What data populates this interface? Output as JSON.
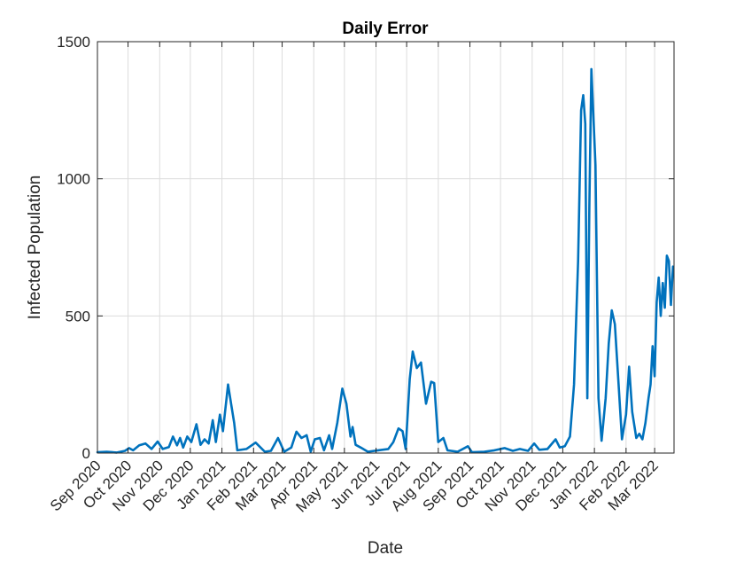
{
  "chart_data": {
    "type": "line",
    "title": "Daily Error",
    "xlabel": "Date",
    "ylabel": "Infected Population",
    "ylim": [
      0,
      1500
    ],
    "xlim": [
      "2020-09-01",
      "2022-03-20"
    ],
    "grid": true,
    "y_ticks": [
      0,
      500,
      1000,
      1500
    ],
    "x_ticks": [
      {
        "date": "2020-09-01",
        "label": "Sep 2020"
      },
      {
        "date": "2020-10-01",
        "label": "Oct 2020"
      },
      {
        "date": "2020-11-01",
        "label": "Nov 2020"
      },
      {
        "date": "2020-12-01",
        "label": "Dec 2020"
      },
      {
        "date": "2021-01-01",
        "label": "Jan 2021"
      },
      {
        "date": "2021-02-01",
        "label": "Feb 2021"
      },
      {
        "date": "2021-03-01",
        "label": "Mar 2021"
      },
      {
        "date": "2021-04-01",
        "label": "Apr 2021"
      },
      {
        "date": "2021-05-01",
        "label": "May 2021"
      },
      {
        "date": "2021-06-01",
        "label": "Jun 2021"
      },
      {
        "date": "2021-07-01",
        "label": "Jul 2021"
      },
      {
        "date": "2021-08-01",
        "label": "Aug 2021"
      },
      {
        "date": "2021-09-01",
        "label": "Sep 2021"
      },
      {
        "date": "2021-10-01",
        "label": "Oct 2021"
      },
      {
        "date": "2021-11-01",
        "label": "Nov 2021"
      },
      {
        "date": "2021-12-01",
        "label": "Dec 2021"
      },
      {
        "date": "2022-01-01",
        "label": "Jan 2022"
      },
      {
        "date": "2022-02-01",
        "label": "Feb 2022"
      },
      {
        "date": "2022-03-01",
        "label": "Mar 2022"
      }
    ],
    "series": [
      {
        "color": "#0072BD",
        "points": [
          [
            "2020-09-01",
            3
          ],
          [
            "2020-09-10",
            5
          ],
          [
            "2020-09-20",
            2
          ],
          [
            "2020-09-28",
            8
          ],
          [
            "2020-10-02",
            18
          ],
          [
            "2020-10-06",
            10
          ],
          [
            "2020-10-12",
            28
          ],
          [
            "2020-10-18",
            35
          ],
          [
            "2020-10-24",
            15
          ],
          [
            "2020-10-30",
            42
          ],
          [
            "2020-11-04",
            15
          ],
          [
            "2020-11-10",
            22
          ],
          [
            "2020-11-14",
            60
          ],
          [
            "2020-11-18",
            28
          ],
          [
            "2020-11-21",
            55
          ],
          [
            "2020-11-24",
            20
          ],
          [
            "2020-11-28",
            60
          ],
          [
            "2020-12-02",
            40
          ],
          [
            "2020-12-07",
            105
          ],
          [
            "2020-12-11",
            30
          ],
          [
            "2020-12-15",
            50
          ],
          [
            "2020-12-19",
            35
          ],
          [
            "2020-12-23",
            120
          ],
          [
            "2020-12-26",
            40
          ],
          [
            "2020-12-30",
            140
          ],
          [
            "2021-01-02",
            80
          ],
          [
            "2021-01-07",
            250
          ],
          [
            "2021-01-10",
            180
          ],
          [
            "2021-01-13",
            110
          ],
          [
            "2021-01-16",
            10
          ],
          [
            "2021-01-25",
            15
          ],
          [
            "2021-02-03",
            38
          ],
          [
            "2021-02-12",
            5
          ],
          [
            "2021-02-18",
            8
          ],
          [
            "2021-02-25",
            55
          ],
          [
            "2021-03-03",
            5
          ],
          [
            "2021-03-10",
            20
          ],
          [
            "2021-03-15",
            78
          ],
          [
            "2021-03-20",
            55
          ],
          [
            "2021-03-25",
            65
          ],
          [
            "2021-03-29",
            5
          ],
          [
            "2021-04-02",
            50
          ],
          [
            "2021-04-07",
            55
          ],
          [
            "2021-04-11",
            10
          ],
          [
            "2021-04-16",
            65
          ],
          [
            "2021-04-19",
            15
          ],
          [
            "2021-04-24",
            110
          ],
          [
            "2021-04-29",
            235
          ],
          [
            "2021-05-03",
            180
          ],
          [
            "2021-05-07",
            60
          ],
          [
            "2021-05-09",
            95
          ],
          [
            "2021-05-12",
            30
          ],
          [
            "2021-05-17",
            20
          ],
          [
            "2021-05-24",
            5
          ],
          [
            "2021-06-03",
            10
          ],
          [
            "2021-06-13",
            15
          ],
          [
            "2021-06-18",
            40
          ],
          [
            "2021-06-23",
            90
          ],
          [
            "2021-06-27",
            80
          ],
          [
            "2021-06-30",
            15
          ],
          [
            "2021-07-04",
            270
          ],
          [
            "2021-07-07",
            370
          ],
          [
            "2021-07-11",
            310
          ],
          [
            "2021-07-15",
            330
          ],
          [
            "2021-07-20",
            180
          ],
          [
            "2021-07-25",
            260
          ],
          [
            "2021-07-28",
            255
          ],
          [
            "2021-08-01",
            40
          ],
          [
            "2021-08-06",
            55
          ],
          [
            "2021-08-10",
            10
          ],
          [
            "2021-08-20",
            5
          ],
          [
            "2021-08-30",
            25
          ],
          [
            "2021-09-03",
            3
          ],
          [
            "2021-09-15",
            5
          ],
          [
            "2021-09-25",
            10
          ],
          [
            "2021-10-05",
            18
          ],
          [
            "2021-10-13",
            8
          ],
          [
            "2021-10-20",
            15
          ],
          [
            "2021-10-28",
            8
          ],
          [
            "2021-11-03",
            35
          ],
          [
            "2021-11-08",
            12
          ],
          [
            "2021-11-16",
            15
          ],
          [
            "2021-11-24",
            50
          ],
          [
            "2021-11-28",
            20
          ],
          [
            "2021-12-03",
            25
          ],
          [
            "2021-12-08",
            60
          ],
          [
            "2021-12-12",
            250
          ],
          [
            "2021-12-16",
            700
          ],
          [
            "2021-12-19",
            1250
          ],
          [
            "2021-12-21",
            1305
          ],
          [
            "2021-12-23",
            1200
          ],
          [
            "2021-12-25",
            200
          ],
          [
            "2021-12-27",
            900
          ],
          [
            "2021-12-29",
            1400
          ],
          [
            "2022-01-02",
            1050
          ],
          [
            "2022-01-05",
            200
          ],
          [
            "2022-01-08",
            45
          ],
          [
            "2022-01-12",
            200
          ],
          [
            "2022-01-15",
            400
          ],
          [
            "2022-01-18",
            520
          ],
          [
            "2022-01-21",
            470
          ],
          [
            "2022-01-25",
            230
          ],
          [
            "2022-01-28",
            50
          ],
          [
            "2022-02-01",
            140
          ],
          [
            "2022-02-04",
            315
          ],
          [
            "2022-02-07",
            150
          ],
          [
            "2022-02-11",
            55
          ],
          [
            "2022-02-14",
            70
          ],
          [
            "2022-02-17",
            50
          ],
          [
            "2022-02-20",
            110
          ],
          [
            "2022-02-23",
            200
          ],
          [
            "2022-02-25",
            250
          ],
          [
            "2022-02-27",
            390
          ],
          [
            "2022-03-01",
            280
          ],
          [
            "2022-03-03",
            550
          ],
          [
            "2022-03-05",
            640
          ],
          [
            "2022-03-07",
            500
          ],
          [
            "2022-03-09",
            620
          ],
          [
            "2022-03-11",
            530
          ],
          [
            "2022-03-13",
            720
          ],
          [
            "2022-03-15",
            700
          ],
          [
            "2022-03-17",
            540
          ],
          [
            "2022-03-19",
            680
          ]
        ]
      }
    ]
  }
}
